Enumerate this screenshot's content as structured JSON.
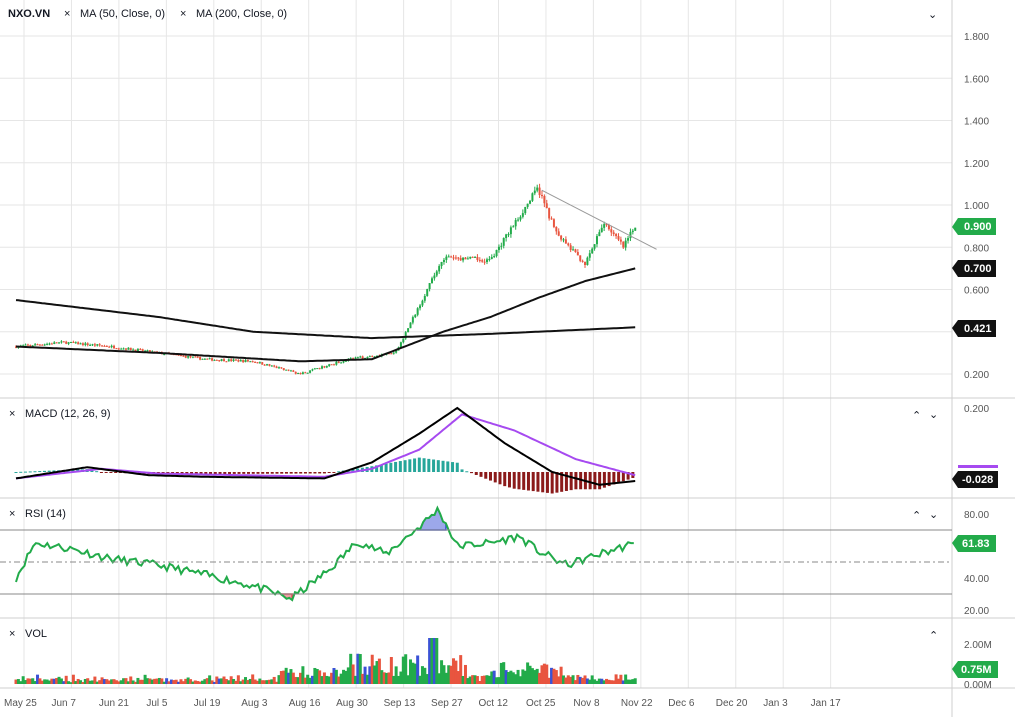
{
  "legend": {
    "symbol": "NXO.VN",
    "ma50": "MA (50, Close, 0)",
    "ma200": "MA (200, Close, 0)",
    "macd": "MACD (12, 26, 9)",
    "rsi": "RSI (14)",
    "vol": "VOL"
  },
  "icons": {
    "remove": "close-icon",
    "collapse": "chevron-down-icon",
    "expand": "chevron-up-icon"
  },
  "colors": {
    "up": "#22ab4a",
    "down": "#e8553f",
    "macd_line": "#000000",
    "signal_line": "#a64af0",
    "hist_pos": "#26a69a",
    "hist_neg": "#8b1a1a",
    "rsi_line": "#22ab4a",
    "rsi_over": "#3a52d6",
    "rsi_under": "#e0404a",
    "ma": "#111111"
  },
  "chart_data": {
    "type": "line",
    "x_axis_dates": [
      "May 25",
      "Jun 7",
      "Jun 21",
      "Jul 5",
      "Jul 19",
      "Aug 3",
      "Aug 16",
      "Aug 30",
      "Sep 13",
      "Sep 27",
      "Oct 12",
      "Oct 25",
      "Nov 8",
      "Nov 22",
      "Dec 6",
      "Dec 20",
      "Jan 3",
      "Jan 17"
    ],
    "price": {
      "y_ticks": [
        "0.200",
        "0.400",
        "0.600",
        "0.800",
        "1.000",
        "1.200",
        "1.400",
        "1.600",
        "1.800"
      ],
      "ylim": [
        0.1,
        1.9
      ],
      "close_approx": [
        [
          0,
          0.33
        ],
        [
          1,
          0.35
        ],
        [
          2,
          0.33
        ],
        [
          3,
          0.3
        ],
        [
          4,
          0.27
        ],
        [
          5,
          0.26
        ],
        [
          6,
          0.2
        ],
        [
          7,
          0.27
        ],
        [
          8,
          0.3
        ],
        [
          9,
          0.75
        ],
        [
          10,
          0.74
        ],
        [
          11,
          1.08
        ],
        [
          11.4,
          0.86
        ],
        [
          12,
          0.72
        ],
        [
          12.4,
          0.92
        ],
        [
          12.8,
          0.8
        ],
        [
          13.05,
          0.9
        ]
      ],
      "ma50_approx": [
        [
          0,
          0.33
        ],
        [
          3,
          0.3
        ],
        [
          6,
          0.26
        ],
        [
          7.5,
          0.27
        ],
        [
          9,
          0.4
        ],
        [
          10,
          0.47
        ],
        [
          11,
          0.56
        ],
        [
          12,
          0.64
        ],
        [
          13.05,
          0.7
        ]
      ],
      "ma200_approx": [
        [
          0,
          0.55
        ],
        [
          3,
          0.47
        ],
        [
          5,
          0.4
        ],
        [
          7.5,
          0.37
        ],
        [
          10,
          0.39
        ],
        [
          13.05,
          0.421
        ]
      ],
      "last_close": "0.900",
      "ma50_last": "0.700",
      "ma200_last": "0.421"
    },
    "macd": {
      "y_ticks": [
        "0.200"
      ],
      "ylim": [
        -0.1,
        0.22
      ],
      "macd_approx": [
        [
          0,
          -0.02
        ],
        [
          1.5,
          0.015
        ],
        [
          2.8,
          -0.01
        ],
        [
          4,
          -0.015
        ],
        [
          6.5,
          -0.02
        ],
        [
          7.5,
          0.03
        ],
        [
          8.5,
          0.12
        ],
        [
          9.3,
          0.2
        ],
        [
          10.3,
          0.09
        ],
        [
          11.3,
          0.0
        ],
        [
          12.3,
          -0.04
        ],
        [
          13.05,
          -0.028
        ]
      ],
      "signal_approx": [
        [
          0,
          -0.02
        ],
        [
          1.8,
          0.01
        ],
        [
          3,
          -0.005
        ],
        [
          6.5,
          -0.015
        ],
        [
          7.5,
          0.01
        ],
        [
          8.5,
          0.07
        ],
        [
          9.4,
          0.18
        ],
        [
          10.5,
          0.13
        ],
        [
          11.8,
          0.04
        ],
        [
          13.05,
          -0.01
        ]
      ],
      "last": "-0.028"
    },
    "rsi": {
      "y_ticks": [
        "20.00",
        "40.00",
        "60.00",
        "80.00"
      ],
      "ylim": [
        15,
        85
      ],
      "levels": [
        30,
        50,
        70
      ],
      "values_approx": [
        [
          0,
          40
        ],
        [
          0.4,
          62
        ],
        [
          1.2,
          58
        ],
        [
          2,
          52
        ],
        [
          3,
          48
        ],
        [
          4,
          42
        ],
        [
          5,
          35
        ],
        [
          5.8,
          27
        ],
        [
          6.6,
          45
        ],
        [
          7.2,
          63
        ],
        [
          7.8,
          55
        ],
        [
          8.5,
          72
        ],
        [
          8.9,
          83
        ],
        [
          9.3,
          60
        ],
        [
          10,
          62
        ],
        [
          10.6,
          66
        ],
        [
          11,
          57
        ],
        [
          11.6,
          48
        ],
        [
          12.3,
          55
        ],
        [
          13.05,
          61.83
        ]
      ],
      "last": "61.83"
    },
    "volume": {
      "y_ticks": [
        "0.00M",
        "0.75M",
        "2.00M"
      ],
      "ylim": [
        0,
        2.6
      ],
      "last": "0.75M"
    }
  }
}
